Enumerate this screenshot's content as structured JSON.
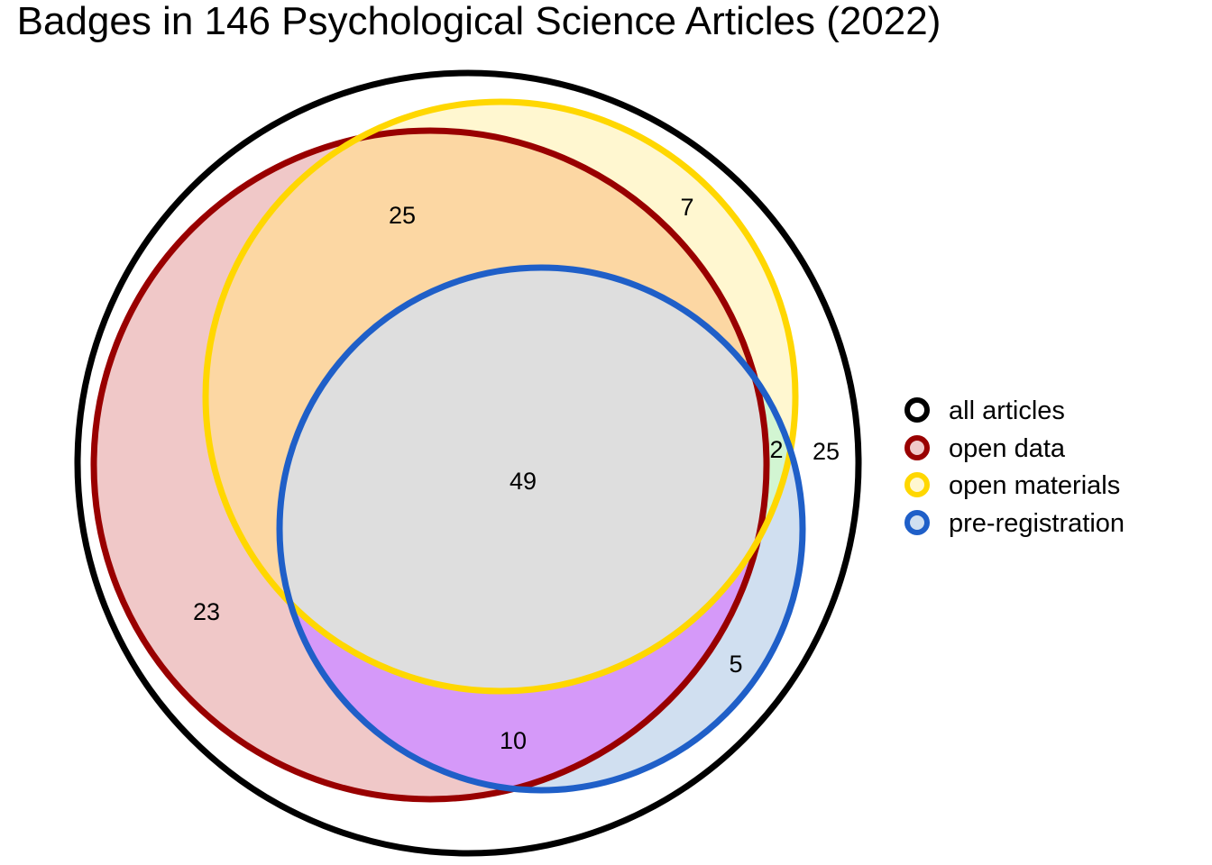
{
  "chart_data": {
    "type": "venn",
    "title": "Badges in 146 Psychological Science Articles (2022)",
    "sets": [
      {
        "name": "all articles",
        "stroke": "#000000",
        "fill": "#ffffff"
      },
      {
        "name": "open data",
        "stroke": "#990000",
        "fill": "#f0c8c8"
      },
      {
        "name": "open materials",
        "stroke": "#ffd700",
        "fill": "#fff7d0"
      },
      {
        "name": "pre-registration",
        "stroke": "#1f5fc8",
        "fill": "#d0dff0"
      }
    ],
    "regions": [
      {
        "sets": [
          "open data",
          "open materials"
        ],
        "value": 25,
        "fill": "#fcd7a3"
      },
      {
        "sets": [
          "open materials"
        ],
        "value": 7,
        "fill": "#fff7d0"
      },
      {
        "sets": [
          "open data"
        ],
        "value": 23,
        "fill": "#f0c8c8"
      },
      {
        "sets": [
          "open data",
          "open materials",
          "pre-registration"
        ],
        "value": 49,
        "fill": "#dedede"
      },
      {
        "sets": [
          "open materials",
          "pre-registration"
        ],
        "value": 2,
        "fill": "#d2f5d2"
      },
      {
        "sets": [
          "all articles only"
        ],
        "value": 25,
        "fill": "#ffffff"
      },
      {
        "sets": [
          "pre-registration"
        ],
        "value": 5,
        "fill": "#d0dff0"
      },
      {
        "sets": [
          "open data",
          "pre-registration"
        ],
        "value": 10,
        "fill": "#d599f9"
      }
    ],
    "legend_position": "right"
  }
}
